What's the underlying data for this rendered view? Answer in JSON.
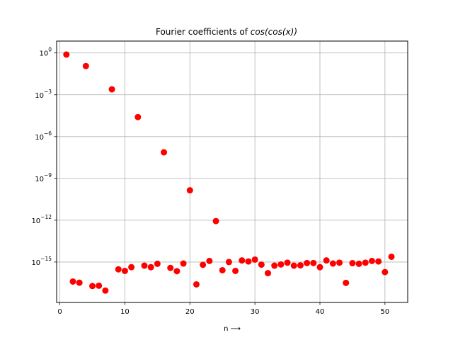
{
  "chart_data": {
    "type": "scatter",
    "title_plain": "Fourier coefficients of ",
    "title_math": "cos(cos(x))",
    "xlabel": "n ⟶",
    "ylabel": "",
    "yscale": "log",
    "xlim": [
      -0.5,
      53.5
    ],
    "ylim_log10": [
      -17.9,
      0.85
    ],
    "grid": true,
    "marker_color": "#ff0000",
    "x_ticks": [
      0,
      10,
      20,
      30,
      40,
      50
    ],
    "y_ticks": [
      {
        "exp": 0,
        "label": "10",
        "sup": "0"
      },
      {
        "exp": -3,
        "label": "10",
        "sup": "−3"
      },
      {
        "exp": -6,
        "label": "10",
        "sup": "−6"
      },
      {
        "exp": -9,
        "label": "10",
        "sup": "−9"
      },
      {
        "exp": -12,
        "label": "10",
        "sup": "−12"
      },
      {
        "exp": -15,
        "label": "10",
        "sup": "−15"
      }
    ],
    "x": [
      1,
      2,
      3,
      4,
      5,
      6,
      7,
      8,
      9,
      10,
      11,
      12,
      13,
      14,
      15,
      16,
      17,
      18,
      19,
      20,
      21,
      22,
      23,
      24,
      25,
      26,
      27,
      28,
      29,
      30,
      31,
      32,
      33,
      34,
      35,
      36,
      37,
      38,
      39,
      40,
      41,
      42,
      43,
      44,
      45,
      46,
      47,
      48,
      49,
      50,
      51
    ],
    "y": [
      0.7652,
      4e-17,
      3.3e-17,
      0.115,
      1.9e-17,
      2e-17,
      9e-18,
      0.00245,
      3e-16,
      2.3e-16,
      4.3e-16,
      2.5e-05,
      5.5e-16,
      4.3e-16,
      7.5e-16,
      7.4e-08,
      3.8e-16,
      2.2e-16,
      7.8e-16,
      1.4e-10,
      2.5e-17,
      6.3e-16,
      1.2e-15,
      8.7e-13,
      2.6e-16,
      1e-15,
      2.3e-16,
      1.3e-15,
      1.1e-15,
      1.5e-15,
      6.5e-16,
      1.6e-16,
      5.5e-16,
      6.7e-16,
      9e-16,
      5.5e-16,
      5.8e-16,
      8.5e-16,
      8.5e-16,
      4.3e-16,
      1.3e-15,
      7.8e-16,
      9e-16,
      3.2e-17,
      8.3e-16,
      7.5e-16,
      9e-16,
      1.2e-15,
      1.1e-15,
      1.9e-16,
      2.4e-15
    ]
  }
}
